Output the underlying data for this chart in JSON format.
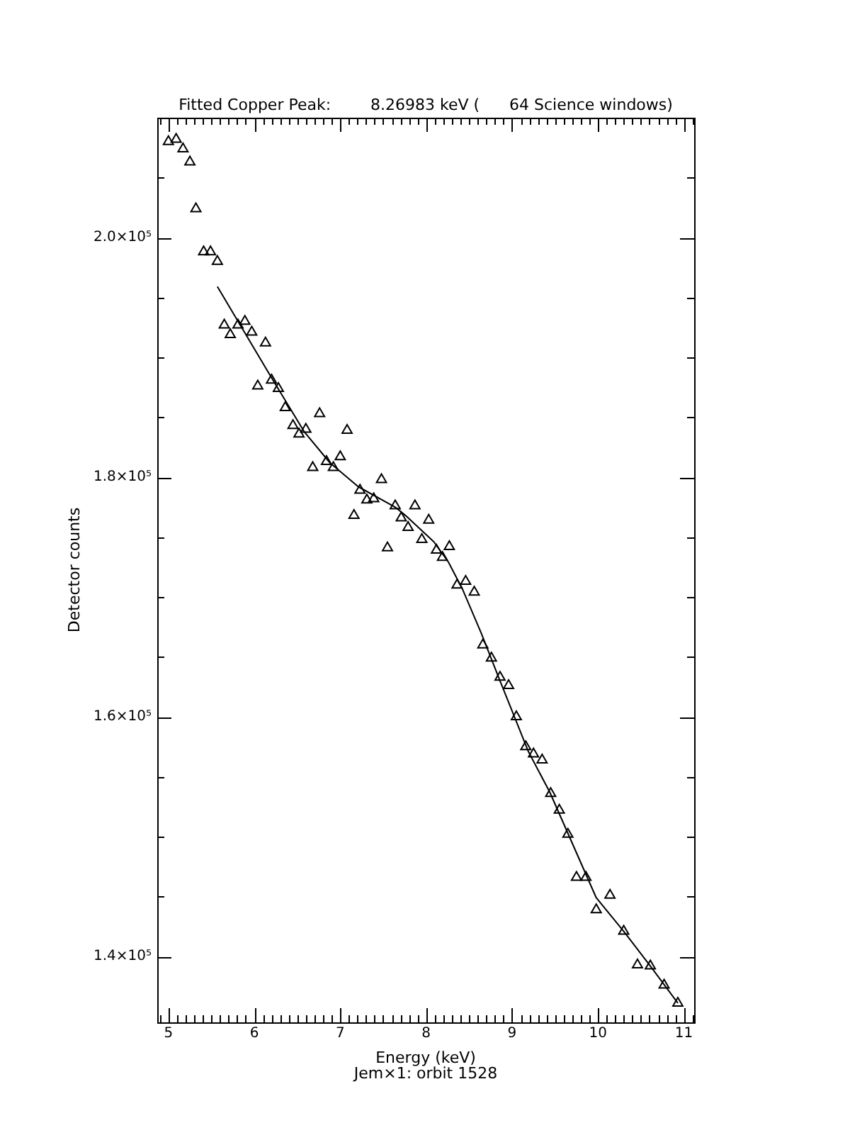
{
  "chart_data": {
    "type": "scatter",
    "title": "Fitted Copper Peak:        8.26983 keV (      64 Science windows)",
    "xlabel": "Energy (keV)",
    "ylabel": "Detector counts",
    "annotations": [
      "Jem×1: orbit 1528"
    ],
    "xlim": [
      4.87,
      11.12
    ],
    "ylim": [
      134500,
      210000
    ],
    "xticks": [
      {
        "value": 4.9,
        "label": null
      },
      5,
      {
        "value": 5.1,
        "label": null
      },
      {
        "value": 5.2,
        "label": null
      },
      {
        "value": 5.3,
        "label": null
      },
      {
        "value": 5.4,
        "label": null
      },
      {
        "value": 5.5,
        "label": null
      },
      {
        "value": 5.6,
        "label": null
      },
      {
        "value": 5.7,
        "label": null
      },
      {
        "value": 5.8,
        "label": null
      },
      {
        "value": 5.9,
        "label": null
      },
      6,
      {
        "value": 6.1,
        "label": null
      },
      {
        "value": 6.2,
        "label": null
      },
      {
        "value": 6.3,
        "label": null
      },
      {
        "value": 6.4,
        "label": null
      },
      {
        "value": 6.5,
        "label": null
      },
      {
        "value": 6.6,
        "label": null
      },
      {
        "value": 6.7,
        "label": null
      },
      {
        "value": 6.8,
        "label": null
      },
      {
        "value": 6.9,
        "label": null
      },
      7,
      {
        "value": 7.1,
        "label": null
      },
      {
        "value": 7.2,
        "label": null
      },
      {
        "value": 7.3,
        "label": null
      },
      {
        "value": 7.4,
        "label": null
      },
      {
        "value": 7.5,
        "label": null
      },
      {
        "value": 7.6,
        "label": null
      },
      {
        "value": 7.7,
        "label": null
      },
      {
        "value": 7.8,
        "label": null
      },
      {
        "value": 7.9,
        "label": null
      },
      8,
      {
        "value": 8.1,
        "label": null
      },
      {
        "value": 8.2,
        "label": null
      },
      {
        "value": 8.3,
        "label": null
      },
      {
        "value": 8.4,
        "label": null
      },
      {
        "value": 8.5,
        "label": null
      },
      {
        "value": 8.6,
        "label": null
      },
      {
        "value": 8.7,
        "label": null
      },
      {
        "value": 8.8,
        "label": null
      },
      {
        "value": 8.9,
        "label": null
      },
      9,
      {
        "value": 9.1,
        "label": null
      },
      {
        "value": 9.2,
        "label": null
      },
      {
        "value": 9.3,
        "label": null
      },
      {
        "value": 9.4,
        "label": null
      },
      {
        "value": 9.5,
        "label": null
      },
      {
        "value": 9.6,
        "label": null
      },
      {
        "value": 9.7,
        "label": null
      },
      {
        "value": 9.8,
        "label": null
      },
      {
        "value": 9.9,
        "label": null
      },
      10,
      {
        "value": 10.1,
        "label": null
      },
      {
        "value": 10.2,
        "label": null
      },
      {
        "value": 10.3,
        "label": null
      },
      {
        "value": 10.4,
        "label": null
      },
      {
        "value": 10.5,
        "label": null
      },
      {
        "value": 10.6,
        "label": null
      },
      {
        "value": 10.7,
        "label": null
      },
      {
        "value": 10.8,
        "label": null
      },
      {
        "value": 10.9,
        "label": null
      },
      11,
      {
        "value": 11.1,
        "label": null
      }
    ],
    "yticks": [
      {
        "value": 140000,
        "label": "1.4×10⁵"
      },
      {
        "value": 145000,
        "label": null
      },
      {
        "value": 150000,
        "label": null
      },
      {
        "value": 155000,
        "label": null
      },
      {
        "value": 160000,
        "label": "1.6×10⁵"
      },
      {
        "value": 165000,
        "label": null
      },
      {
        "value": 170000,
        "label": null
      },
      {
        "value": 175000,
        "label": null
      },
      {
        "value": 180000,
        "label": "1.8×10⁵"
      },
      {
        "value": 185000,
        "label": null
      },
      {
        "value": 190000,
        "label": null
      },
      {
        "value": 195000,
        "label": null
      },
      {
        "value": 200000,
        "label": "2.0×10⁵"
      },
      {
        "value": 205000,
        "label": null
      }
    ],
    "grid": false,
    "series": [
      {
        "type": "scatter",
        "marker": "triangle",
        "color": "#000000",
        "x": [
          5.0,
          5.09,
          5.17,
          5.25,
          5.32,
          5.41,
          5.49,
          5.57,
          5.65,
          5.72,
          5.81,
          5.89,
          5.97,
          6.04,
          6.13,
          6.2,
          6.28,
          6.36,
          6.45,
          6.52,
          6.6,
          6.68,
          6.76,
          6.84,
          6.92,
          7.0,
          7.08,
          7.16,
          7.23,
          7.31,
          7.39,
          7.48,
          7.55,
          7.64,
          7.71,
          7.79,
          7.87,
          7.95,
          8.03,
          8.12,
          8.19,
          8.27,
          8.36,
          8.46,
          8.56,
          8.66,
          8.76,
          8.86,
          8.96,
          9.05,
          9.16,
          9.25,
          9.35,
          9.45,
          9.55,
          9.65,
          9.75,
          9.86,
          9.98,
          10.14,
          10.3,
          10.46,
          10.61,
          10.77,
          10.93
        ],
        "values": [
          208000,
          208200,
          207400,
          206300,
          202400,
          198800,
          198800,
          198000,
          192700,
          191900,
          192700,
          193000,
          192100,
          187600,
          191200,
          188100,
          187400,
          185800,
          184300,
          183600,
          184000,
          180800,
          185300,
          181300,
          180800,
          181700,
          183900,
          176800,
          178900,
          178100,
          178200,
          179800,
          174100,
          177600,
          176600,
          175800,
          177600,
          174800,
          176400,
          173900,
          173300,
          174200,
          171000,
          171300,
          170400,
          166000,
          164900,
          163300,
          162600,
          160000,
          157500,
          156900,
          156400,
          153600,
          152200,
          150200,
          146600,
          146600,
          143900,
          145100,
          142100,
          139300,
          139200,
          137600,
          136100
        ]
      },
      {
        "type": "line",
        "marker": "none",
        "line_style": "solid",
        "color": "#000000",
        "x": [
          5.57,
          6.2,
          6.58,
          6.88,
          7.21,
          7.64,
          7.76,
          8.09,
          8.26,
          8.42,
          8.64,
          8.86,
          9.19,
          9.44,
          9.98,
          10.3,
          10.61,
          10.93
        ],
        "values": [
          195900,
          188300,
          183800,
          181200,
          179200,
          177500,
          176800,
          174600,
          172900,
          170700,
          167000,
          163000,
          157100,
          153700,
          144900,
          142100,
          139200,
          136100
        ]
      }
    ]
  }
}
